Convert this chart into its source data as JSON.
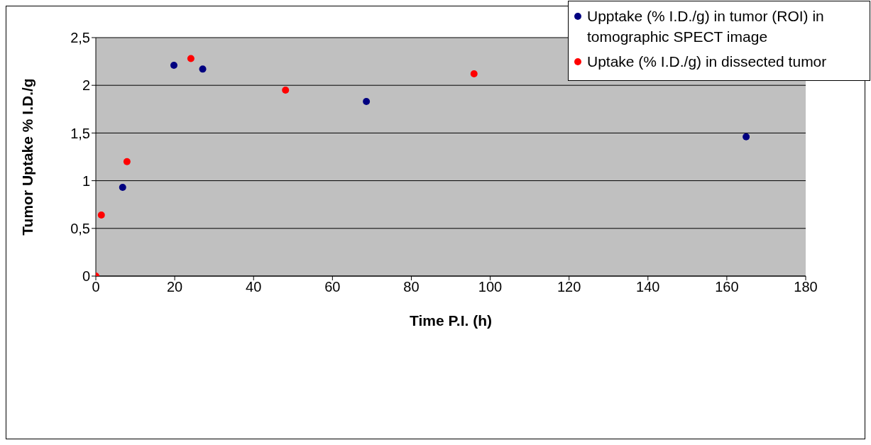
{
  "chart_data": {
    "type": "scatter",
    "xlabel": "Time P.I. (h)",
    "ylabel": "Tumor Uptake % I.D./g",
    "series": [
      {
        "name": "Upptake (% I.D./g) in tumor (ROI) in  tomographic SPECT image",
        "color": "#000080",
        "x": [
          6.8,
          19.8,
          27.1,
          68.6,
          164.9
        ],
        "values": [
          0.93,
          2.21,
          2.17,
          1.83,
          1.46
        ]
      },
      {
        "name": "Uptake (% I.D./g) in dissected tumor",
        "color": "#ff0000",
        "x": [
          0,
          1.4,
          7.9,
          24.1,
          48.1,
          95.9
        ],
        "values": [
          0,
          0.64,
          1.2,
          2.28,
          1.95,
          2.12
        ]
      }
    ],
    "xlim": [
      0,
      180
    ],
    "xticks": [
      0,
      20,
      40,
      60,
      80,
      100,
      120,
      140,
      160,
      180
    ],
    "ylim": [
      0,
      2.5
    ],
    "yticks": [
      0,
      {
        "value": 0.5,
        "label": "0,5"
      },
      1,
      {
        "value": 1.5,
        "label": "1,5"
      },
      2,
      {
        "value": 2.5,
        "label": "2,5"
      }
    ],
    "grid": "y",
    "legend": "top right",
    "marker": "circle"
  }
}
